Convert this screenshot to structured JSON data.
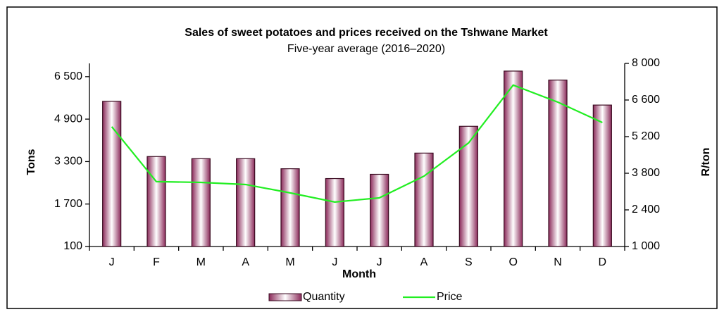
{
  "chart_data": {
    "type": "bar_line",
    "title": "Sales of sweet potatoes and prices received on the Tshwane Market",
    "subtitle": "Five-year average (2016–2020)",
    "x_label": "Month",
    "y_label": "Tons",
    "y2_label": "R/ton",
    "categories": [
      "J",
      "F",
      "M",
      "A",
      "M",
      "J",
      "J",
      "A",
      "S",
      "O",
      "N",
      "D"
    ],
    "series": [
      {
        "name": "Quantity",
        "type": "bar",
        "color": "#8b2a5a",
        "values": [
          5570,
          3490,
          3410,
          3410,
          3030,
          2660,
          2820,
          3620,
          4630,
          6710,
          6370,
          5430
        ]
      },
      {
        "name": "Price",
        "type": "line",
        "axis": "y2",
        "color": "#22ee22",
        "values": [
          5580,
          3480,
          3450,
          3370,
          3050,
          2700,
          2860,
          3690,
          4960,
          7170,
          6520,
          5740
        ]
      }
    ],
    "ylim": [
      100,
      7000
    ],
    "yticks": [
      100,
      {
        "value": 1700,
        "label": "1 700"
      },
      {
        "value": 3300,
        "label": "3 300"
      },
      {
        "value": 4900,
        "label": "4 900"
      },
      {
        "value": 6500,
        "label": "6 500"
      }
    ],
    "y2lim": [
      1000,
      8000
    ],
    "y2ticks": [
      {
        "value": 1000,
        "label": "1 000"
      },
      {
        "value": 2400,
        "label": "2 400"
      },
      {
        "value": 3800,
        "label": "3 800"
      },
      {
        "value": 5200,
        "label": "5 200"
      },
      {
        "value": 6600,
        "label": "6 600"
      },
      {
        "value": 8000,
        "label": "8 000"
      }
    ],
    "legend": "bottom"
  }
}
